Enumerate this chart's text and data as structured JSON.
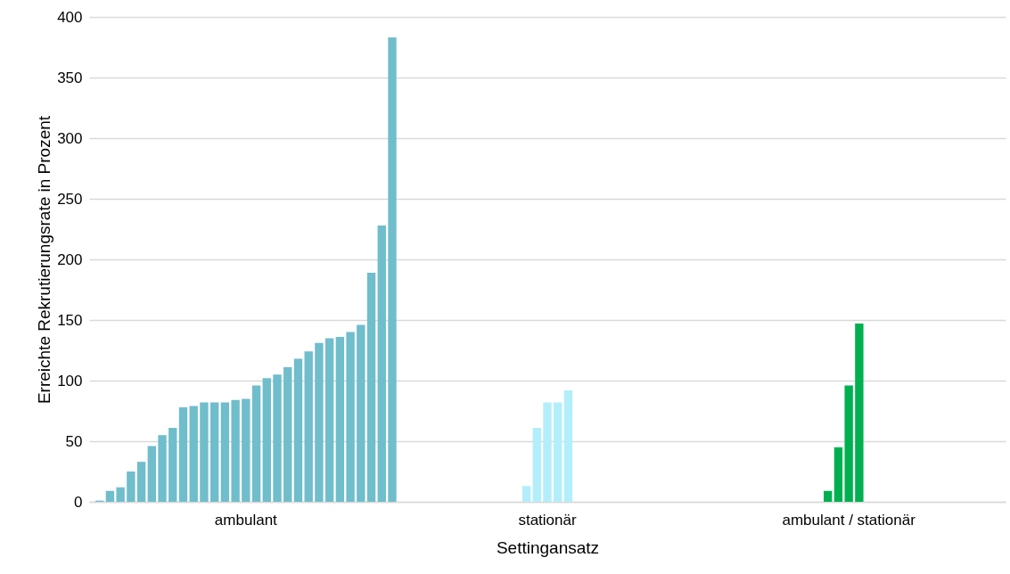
{
  "chart_data": {
    "type": "bar",
    "xlabel": "Settingansatz",
    "ylabel": "Erreichte Rekrutierungsrate in Prozent",
    "categories": [
      "ambulant",
      "stationär",
      "ambulant / stationär"
    ],
    "ylim": [
      0,
      400
    ],
    "yticks": [
      0,
      50,
      100,
      150,
      200,
      250,
      300,
      350,
      400
    ],
    "grid": "y",
    "series": [
      {
        "color": "#70bdcc",
        "values": [
          1,
          null,
          null
        ]
      },
      {
        "color": "#70bdcc",
        "values": [
          9,
          null,
          null
        ]
      },
      {
        "color": "#70bdcc",
        "values": [
          12,
          null,
          null
        ]
      },
      {
        "color": "#70bdcc",
        "values": [
          25,
          null,
          null
        ]
      },
      {
        "color": "#70bdcc",
        "values": [
          33,
          null,
          null
        ]
      },
      {
        "color": "#70bdcc",
        "values": [
          46,
          null,
          null
        ]
      },
      {
        "color": "#70bdcc",
        "values": [
          55,
          null,
          null
        ]
      },
      {
        "color": "#70bdcc",
        "values": [
          61,
          null,
          null
        ]
      },
      {
        "color": "#70bdcc",
        "values": [
          78,
          null,
          null
        ]
      },
      {
        "color": "#70bdcc",
        "values": [
          79,
          null,
          null
        ]
      },
      {
        "color": "#70bdcc",
        "values": [
          82,
          null,
          null
        ]
      },
      {
        "color": "#70bdcc",
        "values": [
          82,
          null,
          null
        ]
      },
      {
        "colors": [
          "#70bdcc",
          "#b3eefb",
          "#00b050"
        ],
        "values": [
          82,
          13,
          9
        ]
      },
      {
        "colors": [
          "#70bdcc",
          "#b3eefb",
          "#00b050"
        ],
        "values": [
          84,
          61,
          45
        ]
      },
      {
        "colors": [
          "#70bdcc",
          "#b3eefb",
          "#00b050"
        ],
        "values": [
          85,
          82,
          96
        ]
      },
      {
        "colors": [
          "#70bdcc",
          "#b3eefb",
          "#00b050"
        ],
        "values": [
          96,
          82,
          147
        ]
      },
      {
        "colors": [
          "#70bdcc",
          "#b3eefb",
          null
        ],
        "values": [
          102,
          92,
          null
        ]
      },
      {
        "color": "#70bdcc",
        "values": [
          105,
          null,
          null
        ]
      },
      {
        "color": "#70bdcc",
        "values": [
          111,
          null,
          null
        ]
      },
      {
        "color": "#70bdcc",
        "values": [
          118,
          null,
          null
        ]
      },
      {
        "color": "#70bdcc",
        "values": [
          124,
          null,
          null
        ]
      },
      {
        "color": "#70bdcc",
        "values": [
          131,
          null,
          null
        ]
      },
      {
        "color": "#70bdcc",
        "values": [
          135,
          null,
          null
        ]
      },
      {
        "color": "#70bdcc",
        "values": [
          136,
          null,
          null
        ]
      },
      {
        "color": "#70bdcc",
        "values": [
          140,
          null,
          null
        ]
      },
      {
        "color": "#70bdcc",
        "values": [
          146,
          null,
          null
        ]
      },
      {
        "color": "#70bdcc",
        "values": [
          189,
          null,
          null
        ]
      },
      {
        "color": "#70bdcc",
        "values": [
          228,
          null,
          null
        ]
      },
      {
        "color": "#70bdcc",
        "values": [
          383,
          null,
          null
        ]
      }
    ]
  }
}
